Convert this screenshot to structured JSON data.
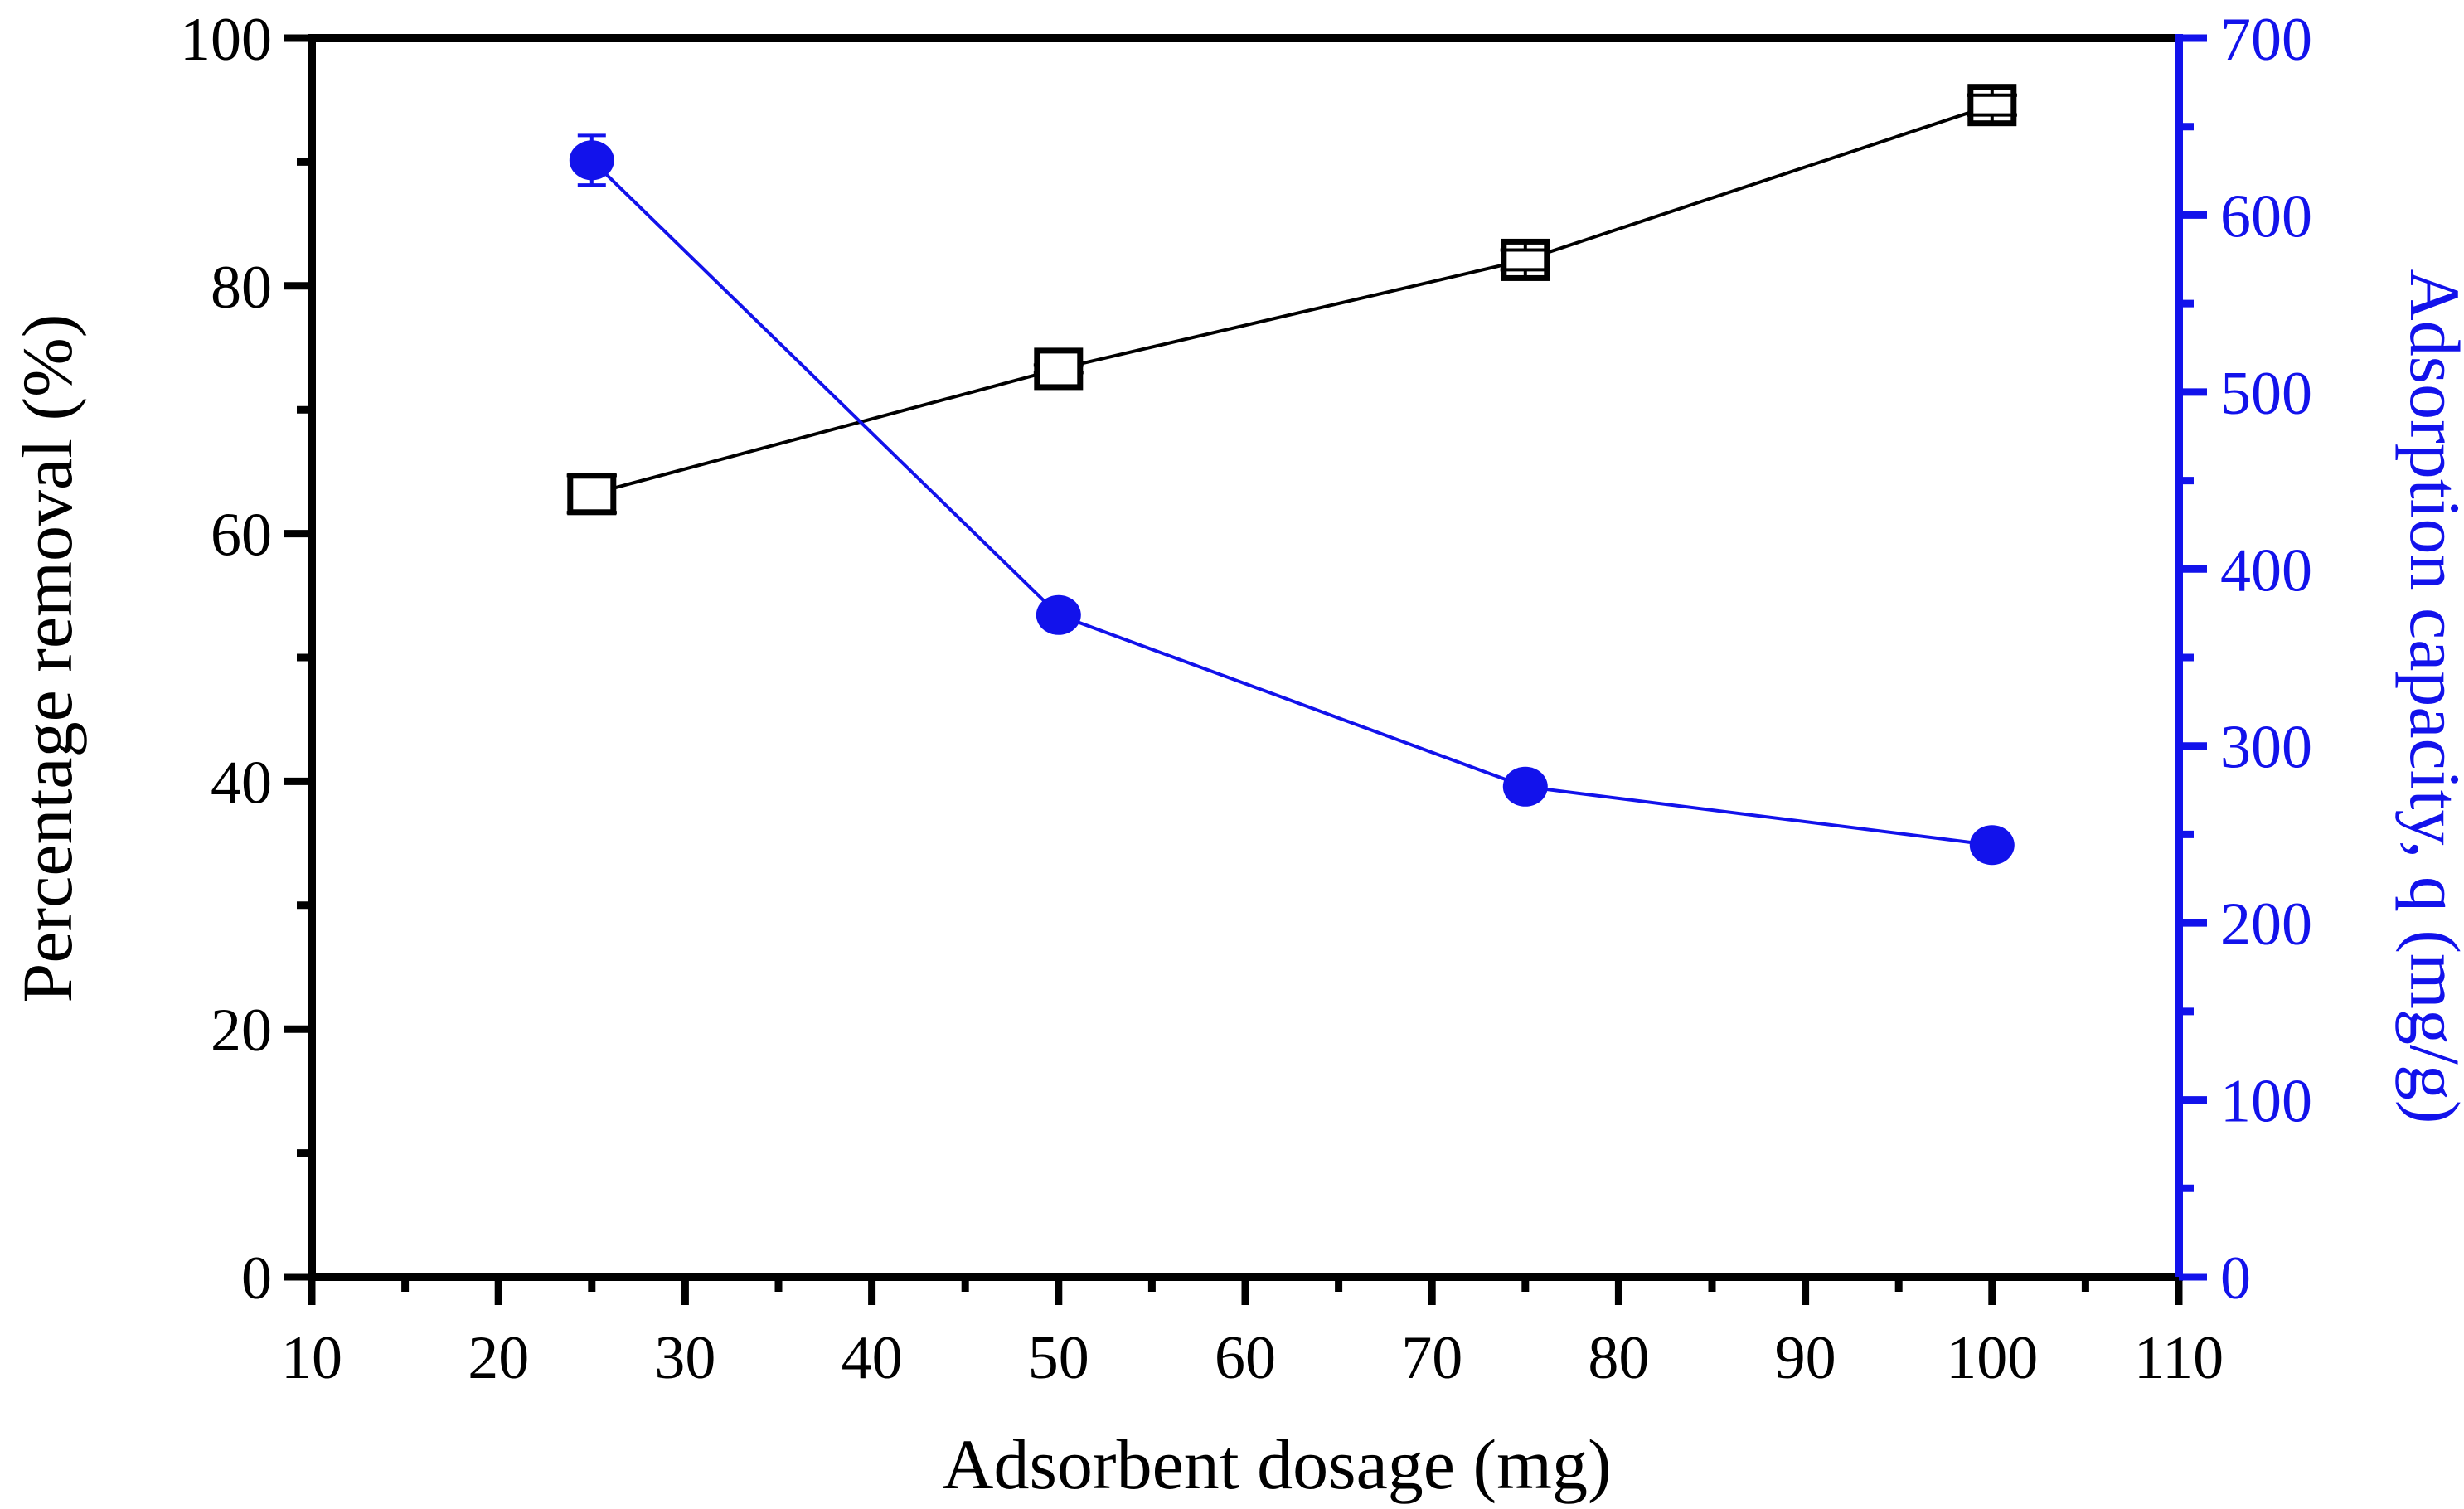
{
  "chart_data": {
    "type": "line",
    "title": "",
    "xlabel": "Adsorbent dosage (mg)",
    "ylabel_left": "Percentage removal (%)",
    "ylabel_right": "Adsorption capacity, q (mg/g)",
    "background_color": "#ffffff",
    "axis_color_left": "#000000",
    "axis_color_right": "#1212eb",
    "grid": false,
    "legend": false,
    "x_axis": {
      "min": 10,
      "max": 110,
      "major_step": 10,
      "minor_step": 5,
      "tick_labels": [
        "10",
        "20",
        "30",
        "40",
        "50",
        "60",
        "70",
        "80",
        "90",
        "100",
        "110"
      ]
    },
    "y_axis_left": {
      "min": 0,
      "max": 100,
      "major_step": 20,
      "minor_step": 10,
      "tick_labels": [
        "0",
        "20",
        "40",
        "60",
        "80",
        "100"
      ]
    },
    "y_axis_right": {
      "min": 0,
      "max": 700,
      "major_step": 100,
      "minor_step": 50,
      "tick_labels": [
        "0",
        "100",
        "200",
        "300",
        "400",
        "500",
        "600",
        "700"
      ]
    },
    "series": [
      {
        "name": "Percentage removal",
        "axis": "left",
        "marker": "open-square",
        "color": "#000000",
        "x": [
          25,
          50,
          75,
          100
        ],
        "y": [
          63.2,
          73.3,
          82.1,
          94.6
        ],
        "y_err": [
          1.5,
          0.3,
          0.8,
          0.8
        ]
      },
      {
        "name": "Adsorption capacity, q",
        "axis": "right",
        "marker": "filled-circle",
        "color": "#1212eb",
        "x": [
          25,
          50,
          75,
          100
        ],
        "y": [
          631,
          374,
          277,
          244
        ],
        "y_err": [
          14,
          8,
          7,
          6
        ]
      }
    ]
  }
}
